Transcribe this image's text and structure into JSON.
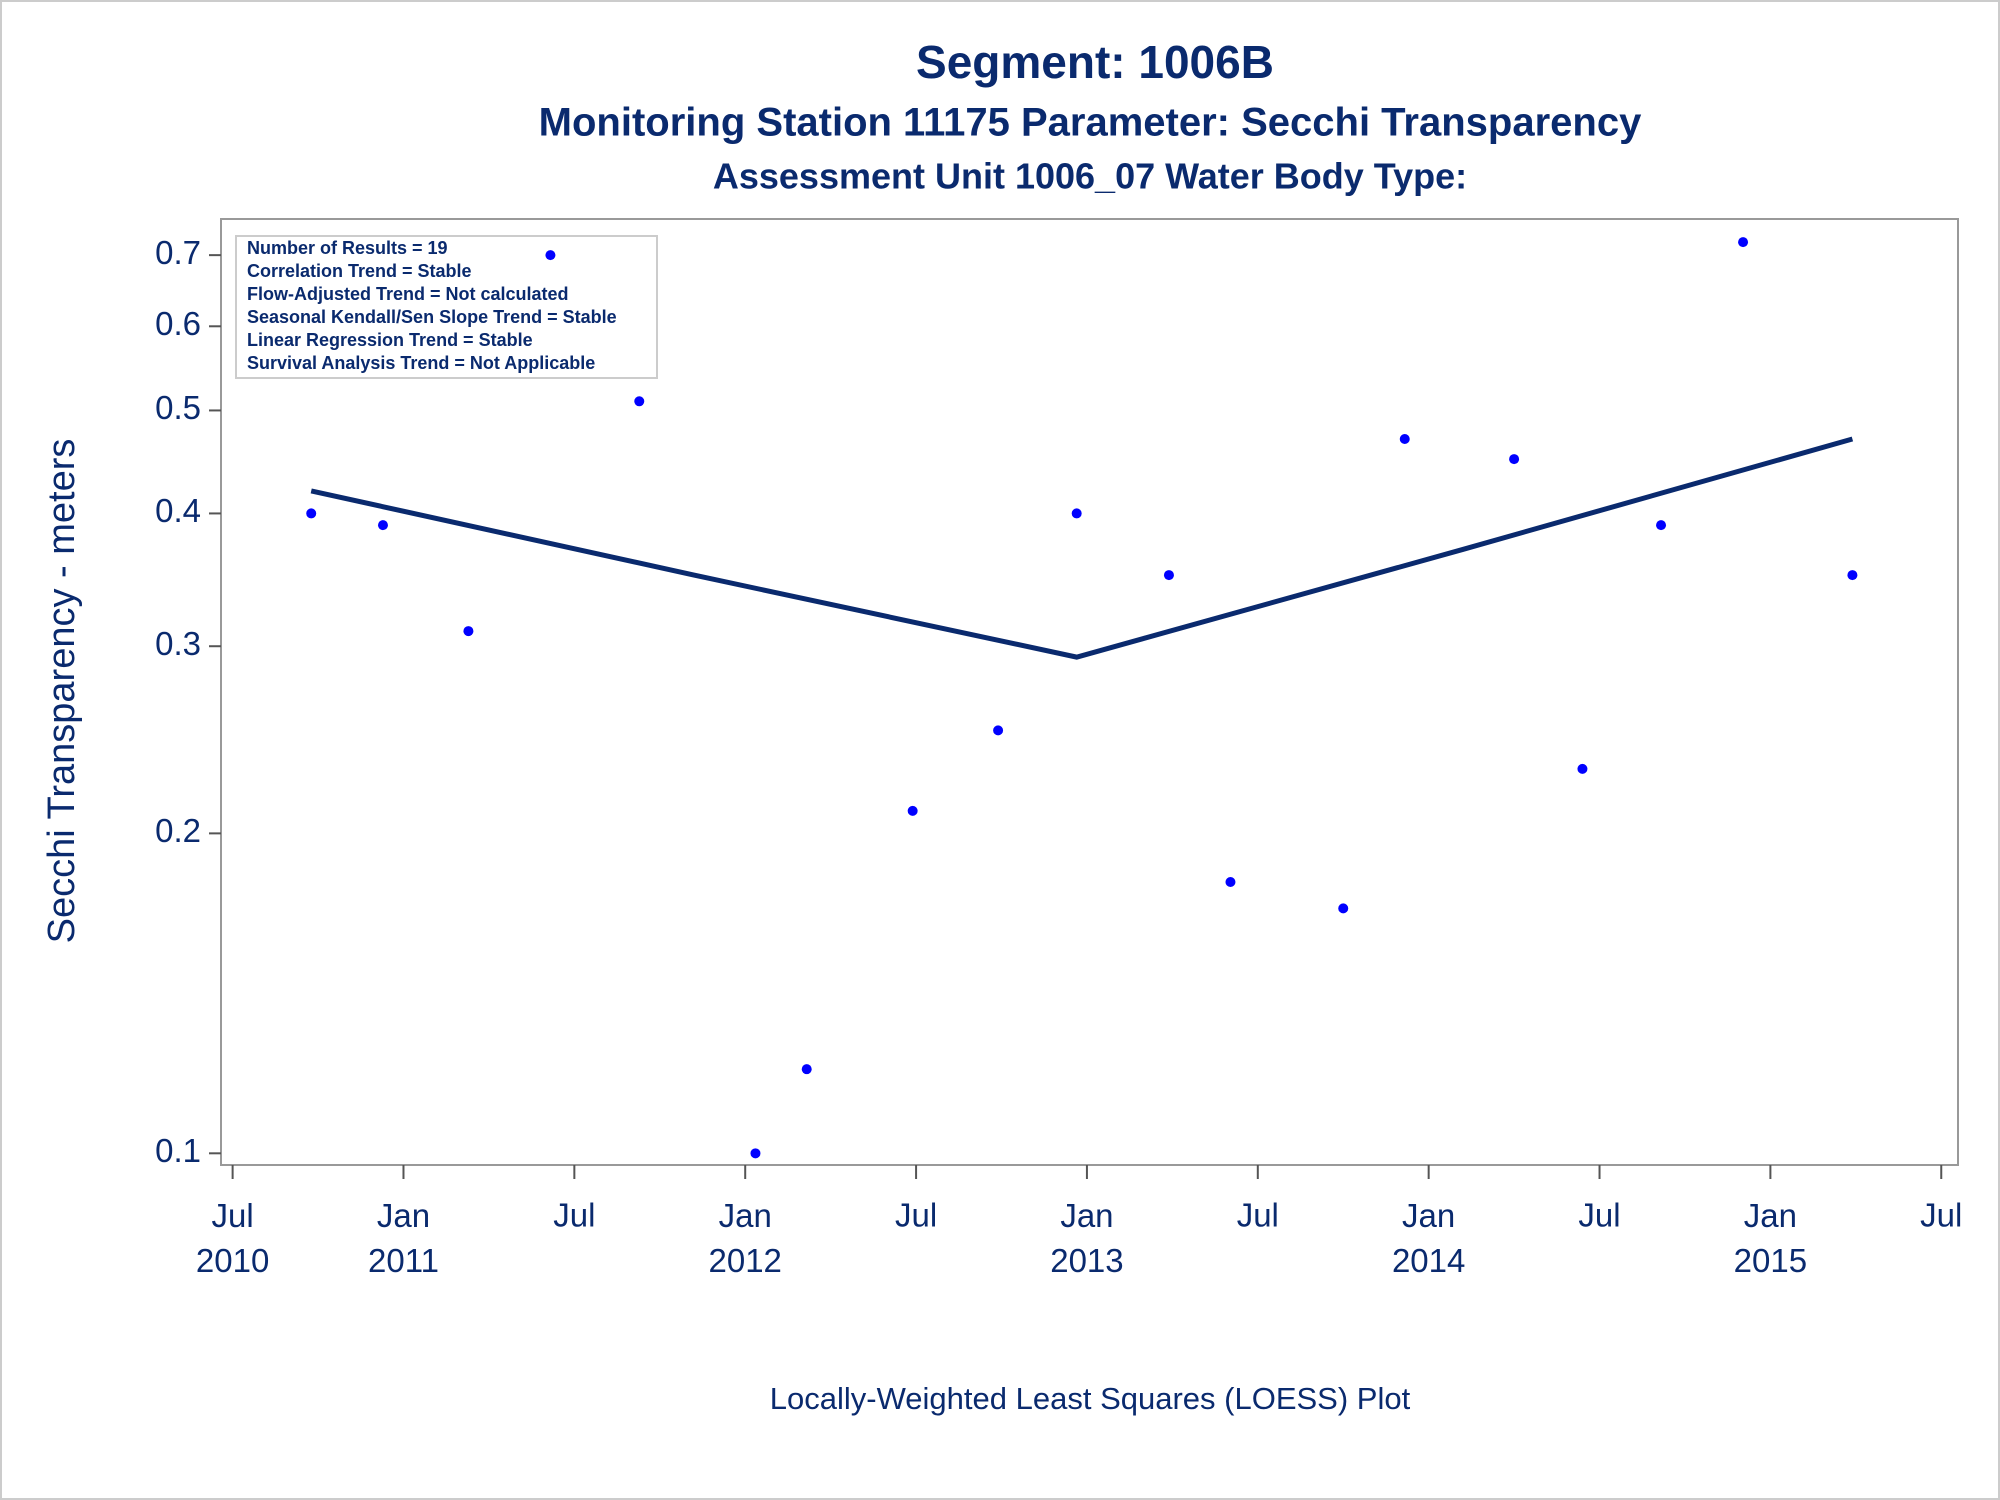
{
  "chart_data": {
    "type": "scatter",
    "title": "Segment: 1006B",
    "subtitle": "Monitoring Station 11175 Parameter: Secchi Transparency",
    "subtitle2": "Assessment Unit 1006_07   Water Body Type:",
    "y_label": "Secchi Transparency - meters",
    "footer": "Locally-Weighted Least Squares (LOESS) Plot",
    "stats": [
      "Number of Results = 19",
      "Correlation Trend = Stable",
      "Flow-Adjusted Trend = Not calculated",
      "Seasonal Kendall/Sen Slope Trend = Stable",
      "Linear Regression Trend = Stable",
      "Survival Analysis Trend = Not Applicable"
    ],
    "x": [
      2010.73,
      2010.94,
      2011.19,
      2011.43,
      2011.69,
      2012.03,
      2012.18,
      2012.49,
      2012.74,
      2012.97,
      2013.24,
      2013.42,
      2013.75,
      2013.93,
      2014.25,
      2014.45,
      2014.68,
      2014.92,
      2015.24
    ],
    "values": [
      0.4,
      0.39,
      0.31,
      0.7,
      0.51,
      0.1,
      0.12,
      0.21,
      0.25,
      0.4,
      0.35,
      0.18,
      0.17,
      0.47,
      0.45,
      0.23,
      0.39,
      0.72,
      0.35
    ],
    "color": "#0000ff",
    "fit_line": {
      "x": [
        2010.73,
        2011.85,
        2012.97,
        2014.1,
        2015.24
      ],
      "values": [
        0.42,
        0.35,
        0.293,
        0.37,
        0.47
      ],
      "color": "#0a2a6e"
    },
    "xlim": [
      2010.466,
      2015.549
    ],
    "xticks": [
      {
        "value": 2010.5,
        "label": "Jul 2010"
      },
      {
        "value": 2011.0,
        "label": "Jan 2011"
      },
      {
        "value": 2011.5,
        "label": "Jul"
      },
      {
        "value": 2012.0,
        "label": "Jan 2012"
      },
      {
        "value": 2012.5,
        "label": "Jul"
      },
      {
        "value": 2013.0,
        "label": "Jan 2013"
      },
      {
        "value": 2013.5,
        "label": "Jul"
      },
      {
        "value": 2014.0,
        "label": "Jan 2014"
      },
      {
        "value": 2014.5,
        "label": "Jul"
      },
      {
        "value": 2015.0,
        "label": "Jan 2015"
      },
      {
        "value": 2015.5,
        "label": "Jul"
      }
    ],
    "ylim": [
      0.0975,
      0.757
    ],
    "yticks": [
      0.1,
      0.2,
      0.3,
      0.4,
      0.5,
      0.6,
      0.7
    ],
    "y_log": true
  }
}
